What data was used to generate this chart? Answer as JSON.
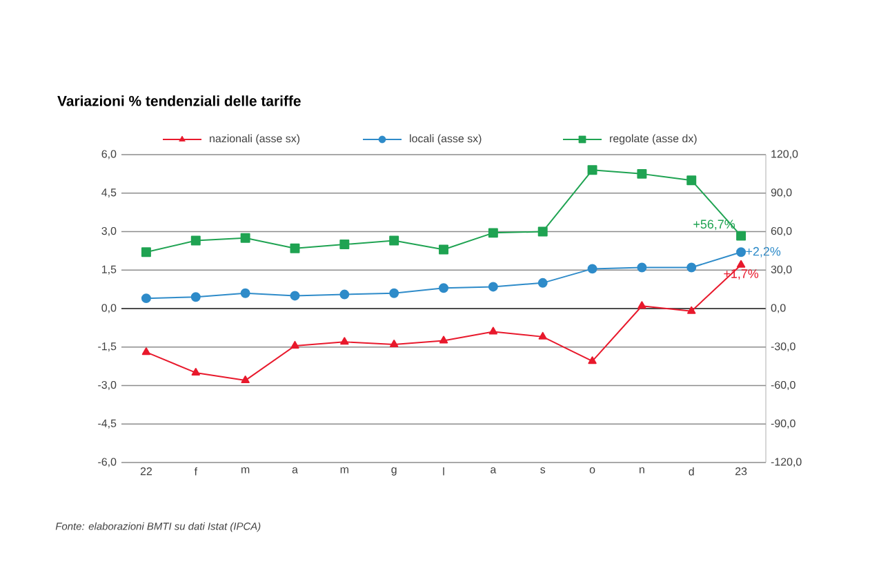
{
  "chart_data": {
    "type": "line",
    "title": "Variazioni % tendenziali delle tariffe",
    "categories": [
      "22",
      "f",
      "m",
      "a",
      "m",
      "g",
      "l",
      "a",
      "s",
      "o",
      "n",
      "d",
      "23"
    ],
    "series": [
      {
        "name": "nazionali (asse sx)",
        "color": "#e8192c",
        "marker": "triangle",
        "values": [
          -1.7,
          -2.5,
          -2.8,
          -1.45,
          -1.3,
          -1.4,
          -1.25,
          -0.9,
          -1.1,
          -2.05,
          0.1,
          -0.1,
          1.7
        ]
      },
      {
        "name": "locali (asse sx)",
        "color": "#2e8bc9",
        "marker": "circle",
        "values": [
          0.4,
          0.45,
          0.6,
          0.5,
          0.55,
          0.6,
          0.8,
          0.85,
          1.0,
          1.55,
          1.6,
          1.6,
          2.2
        ]
      },
      {
        "name": "regolate (asse dx)",
        "color": "#1fa352",
        "marker": "square",
        "axis": "y2",
        "values": [
          44,
          53,
          55,
          47,
          50,
          53,
          46,
          59,
          60,
          108,
          105,
          100,
          56.7
        ]
      }
    ],
    "ylim": [
      -6,
      6
    ],
    "yticks": [
      {
        "value": -6,
        "label": "-6,0"
      },
      {
        "value": -4.5,
        "label": "-4,5"
      },
      {
        "value": -3,
        "label": "-3,0"
      },
      {
        "value": -1.5,
        "label": "-1,5"
      },
      {
        "value": 0,
        "label": "0,0"
      },
      {
        "value": 1.5,
        "label": "1,5"
      },
      {
        "value": 3,
        "label": "3,0"
      },
      {
        "value": 4.5,
        "label": "4,5"
      },
      {
        "value": 6,
        "label": "6,0"
      }
    ],
    "y2lim": [
      -120,
      120
    ],
    "y2ticks": [
      {
        "value": -120,
        "label": "-120,0"
      },
      {
        "value": -90,
        "label": "-90,0"
      },
      {
        "value": -60,
        "label": "-60,0"
      },
      {
        "value": -30,
        "label": "-30,0"
      },
      {
        "value": 0,
        "label": "0,0"
      },
      {
        "value": 30,
        "label": "30,0"
      },
      {
        "value": 60,
        "label": "60,0"
      },
      {
        "value": 90,
        "label": "90,0"
      },
      {
        "value": 120,
        "label": "120,0"
      }
    ],
    "annotations": [
      {
        "text": "+1,7%",
        "x": "23",
        "y": 1.7
      },
      {
        "text": "+2,2%",
        "x": "23",
        "y": 2.2
      },
      "+56,7%",
      "Fonte: elaborazioni BMTI su dati Istat (IPCA)"
    ],
    "grid": "y",
    "legend": "top",
    "line_style": "solid"
  }
}
